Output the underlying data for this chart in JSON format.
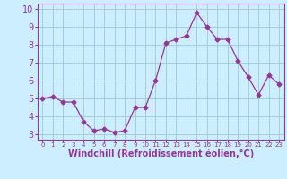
{
  "x": [
    0,
    1,
    2,
    3,
    4,
    5,
    6,
    7,
    8,
    9,
    10,
    11,
    12,
    13,
    14,
    15,
    16,
    17,
    18,
    19,
    20,
    21,
    22,
    23
  ],
  "y": [
    5.0,
    5.1,
    4.8,
    4.8,
    3.7,
    3.2,
    3.3,
    3.1,
    3.2,
    4.5,
    4.5,
    6.0,
    8.1,
    8.3,
    8.5,
    9.8,
    9.0,
    8.3,
    8.3,
    7.1,
    6.2,
    5.2,
    6.3,
    5.8
  ],
  "line_color": "#993399",
  "marker": "D",
  "marker_size": 2.5,
  "xlabel": "Windchill (Refroidissement éolien,°C)",
  "xlabel_fontsize": 7,
  "tick_color": "#993399",
  "ylabel_ticks": [
    3,
    4,
    5,
    6,
    7,
    8,
    9,
    10
  ],
  "ytick_fontsize": 7,
  "xtick_labels": [
    "0",
    "1",
    "2",
    "3",
    "4",
    "5",
    "6",
    "7",
    "8",
    "9",
    "10",
    "11",
    "12",
    "13",
    "14",
    "15",
    "16",
    "17",
    "18",
    "19",
    "20",
    "21",
    "22",
    "23"
  ],
  "xtick_fontsize": 5,
  "ylim": [
    2.7,
    10.3
  ],
  "xlim": [
    -0.5,
    23.5
  ],
  "bg_color": "#cceeff",
  "grid_color": "#99cccc",
  "spine_color": "#993399"
}
